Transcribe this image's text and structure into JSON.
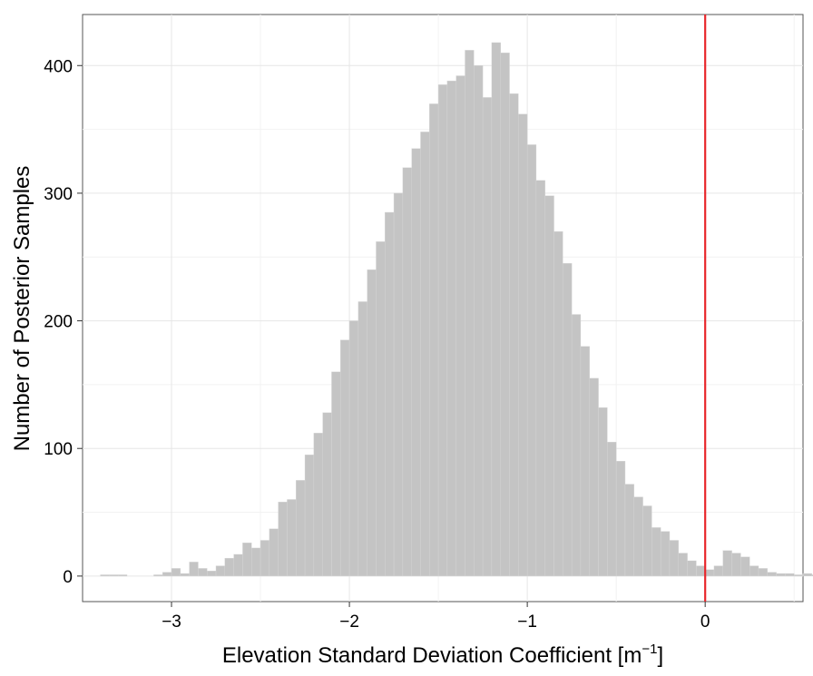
{
  "chart_data": {
    "type": "bar",
    "xlabel": "Elevation Standard Deviation Coefficient [m",
    "xlabel_sup": "−1",
    "xlabel_end": "]",
    "ylabel": "Number of Posterior Samples",
    "xlim": [
      -3.5,
      0.55
    ],
    "ylim": [
      -20,
      440
    ],
    "grid": true,
    "x_ticks": [
      {
        "value": -3,
        "label": "−3"
      },
      {
        "value": -2,
        "label": "−2"
      },
      {
        "value": -1,
        "label": "−1"
      },
      {
        "value": 0,
        "label": "0"
      }
    ],
    "y_ticks": [
      {
        "value": 0,
        "label": "0"
      },
      {
        "value": 100,
        "label": "100"
      },
      {
        "value": 200,
        "label": "200"
      },
      {
        "value": 300,
        "label": "300"
      },
      {
        "value": 400,
        "label": "400"
      }
    ],
    "bin_start": -3.4,
    "bin_width": 0.05,
    "values": [
      1,
      1,
      1,
      0,
      0,
      0,
      1,
      3,
      6,
      2,
      11,
      6,
      4,
      8,
      14,
      17,
      26,
      22,
      28,
      37,
      58,
      60,
      75,
      95,
      112,
      128,
      160,
      185,
      200,
      215,
      240,
      262,
      285,
      300,
      320,
      335,
      348,
      370,
      385,
      388,
      392,
      412,
      400,
      375,
      418,
      410,
      378,
      362,
      338,
      310,
      298,
      270,
      245,
      205,
      180,
      155,
      132,
      105,
      90,
      72,
      62,
      55,
      38,
      35,
      28,
      18,
      12,
      8,
      5,
      8,
      20,
      18,
      15,
      8,
      6,
      3,
      2,
      2,
      1,
      2,
      1,
      3
    ],
    "bar_color": "#c4c4c4",
    "reference_line": {
      "x": 0,
      "color": "#e8282d"
    }
  }
}
